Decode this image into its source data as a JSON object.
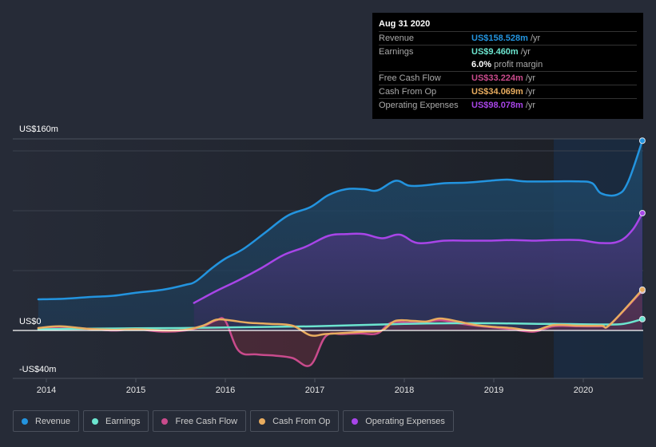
{
  "tooltip": {
    "date": "Aug 31 2020",
    "rows": [
      {
        "label": "Revenue",
        "value": "US$158.528m",
        "unit": "/yr",
        "color": "#2394df"
      },
      {
        "label": "Earnings",
        "value": "US$9.460m",
        "unit": "/yr",
        "color": "#6ce5cf"
      },
      {
        "label": "",
        "value": "6.0%",
        "unit": "profit margin",
        "color": "#ffffff"
      },
      {
        "label": "Free Cash Flow",
        "value": "US$33.224m",
        "unit": "/yr",
        "color": "#c94b8c"
      },
      {
        "label": "Cash From Op",
        "value": "US$34.069m",
        "unit": "/yr",
        "color": "#e8ac5f"
      },
      {
        "label": "Operating Expenses",
        "value": "US$98.078m",
        "unit": "/yr",
        "color": "#a845e8"
      }
    ]
  },
  "legend": [
    {
      "label": "Revenue",
      "color": "#2394df"
    },
    {
      "label": "Earnings",
      "color": "#6ce5cf"
    },
    {
      "label": "Free Cash Flow",
      "color": "#c94b8c"
    },
    {
      "label": "Cash From Op",
      "color": "#e8ac5f"
    },
    {
      "label": "Operating Expenses",
      "color": "#a845e8"
    }
  ],
  "chart_data": {
    "type": "area",
    "title": "",
    "xlabel": "",
    "ylabel": "",
    "ylim": [
      -40,
      160
    ],
    "xlim": [
      2013.83,
      2020.67
    ],
    "y_tick_labels": [
      {
        "value": 160,
        "label": "US$160m"
      },
      {
        "value": 0,
        "label": "US$0"
      },
      {
        "value": -40,
        "label": "-US$40m"
      }
    ],
    "gridlines": [
      150,
      100,
      50
    ],
    "x_tick_labels": [
      "2014",
      "2015",
      "2016",
      "2017",
      "2018",
      "2019",
      "2020"
    ],
    "x_ticks": [
      2014,
      2015,
      2016,
      2017,
      2018,
      2019,
      2020
    ],
    "highlight_from": 2020.75,
    "forecast_region_start": 2019.67,
    "series": [
      {
        "name": "Revenue",
        "color": "#2394df",
        "fill": true,
        "points": [
          [
            2013.91,
            26
          ],
          [
            2014.2,
            26.5
          ],
          [
            2014.5,
            28
          ],
          [
            2014.75,
            29
          ],
          [
            2015.0,
            31.5
          ],
          [
            2015.3,
            34
          ],
          [
            2015.55,
            38
          ],
          [
            2015.67,
            41
          ],
          [
            2015.85,
            52
          ],
          [
            2016.0,
            60
          ],
          [
            2016.2,
            68
          ],
          [
            2016.45,
            82
          ],
          [
            2016.7,
            96
          ],
          [
            2016.95,
            103
          ],
          [
            2017.15,
            113
          ],
          [
            2017.35,
            118
          ],
          [
            2017.55,
            118
          ],
          [
            2017.7,
            117
          ],
          [
            2017.9,
            125
          ],
          [
            2018.05,
            121
          ],
          [
            2018.2,
            121
          ],
          [
            2018.45,
            123
          ],
          [
            2018.7,
            123.5
          ],
          [
            2018.95,
            125
          ],
          [
            2019.15,
            126
          ],
          [
            2019.35,
            124.5
          ],
          [
            2019.67,
            124.5
          ],
          [
            2019.95,
            124.5
          ],
          [
            2020.1,
            123
          ],
          [
            2020.2,
            114.5
          ],
          [
            2020.38,
            113.5
          ],
          [
            2020.5,
            124
          ],
          [
            2020.66,
            158.5
          ]
        ]
      },
      {
        "name": "Operating Expenses",
        "color": "#a845e8",
        "fill": true,
        "points": [
          [
            2015.65,
            23
          ],
          [
            2015.9,
            33
          ],
          [
            2016.15,
            42
          ],
          [
            2016.4,
            52
          ],
          [
            2016.65,
            63
          ],
          [
            2016.9,
            70
          ],
          [
            2017.15,
            79
          ],
          [
            2017.35,
            80.5
          ],
          [
            2017.55,
            80.5
          ],
          [
            2017.75,
            77
          ],
          [
            2017.95,
            80
          ],
          [
            2018.15,
            73
          ],
          [
            2018.45,
            75
          ],
          [
            2018.7,
            75
          ],
          [
            2018.95,
            75
          ],
          [
            2019.2,
            75.5
          ],
          [
            2019.45,
            75
          ],
          [
            2019.67,
            75.5
          ],
          [
            2019.95,
            75.5
          ],
          [
            2020.2,
            73
          ],
          [
            2020.4,
            74.5
          ],
          [
            2020.55,
            84
          ],
          [
            2020.66,
            98
          ]
        ]
      },
      {
        "name": "Earnings",
        "color": "#6ce5cf",
        "fill": false,
        "points": [
          [
            2013.91,
            1
          ],
          [
            2014.5,
            1.5
          ],
          [
            2015.0,
            1.8
          ],
          [
            2015.5,
            2
          ],
          [
            2016.0,
            2.5
          ],
          [
            2016.5,
            3
          ],
          [
            2017.0,
            3.5
          ],
          [
            2017.5,
            4.5
          ],
          [
            2018.0,
            5.5
          ],
          [
            2018.5,
            6
          ],
          [
            2019.0,
            6
          ],
          [
            2019.5,
            5.5
          ],
          [
            2019.67,
            5.5
          ],
          [
            2020.2,
            5
          ],
          [
            2020.45,
            5.5
          ],
          [
            2020.66,
            9.5
          ]
        ]
      },
      {
        "name": "Free Cash Flow",
        "color": "#c94b8c",
        "fill": true,
        "points": [
          [
            2013.91,
            2
          ],
          [
            2014.15,
            3
          ],
          [
            2014.45,
            1.5
          ],
          [
            2014.75,
            0
          ],
          [
            2015.0,
            1
          ],
          [
            2015.3,
            -1
          ],
          [
            2015.55,
            0
          ],
          [
            2015.75,
            3.5
          ],
          [
            2015.9,
            8.5
          ],
          [
            2016.0,
            8
          ],
          [
            2016.15,
            -17
          ],
          [
            2016.35,
            -20
          ],
          [
            2016.55,
            -21
          ],
          [
            2016.75,
            -23
          ],
          [
            2016.95,
            -29
          ],
          [
            2017.12,
            -5
          ],
          [
            2017.3,
            -3
          ],
          [
            2017.5,
            -2.5
          ],
          [
            2017.7,
            -2.5
          ],
          [
            2017.85,
            6.5
          ],
          [
            2018.05,
            6.5
          ],
          [
            2018.2,
            6.5
          ],
          [
            2018.4,
            8.5
          ],
          [
            2018.6,
            6
          ],
          [
            2018.8,
            4
          ],
          [
            2019.0,
            2.5
          ],
          [
            2019.2,
            1
          ],
          [
            2019.45,
            -1
          ],
          [
            2019.67,
            3.5
          ],
          [
            2019.95,
            3.5
          ],
          [
            2020.2,
            3.5
          ],
          [
            2020.3,
            5
          ],
          [
            2020.66,
            33.2
          ]
        ]
      },
      {
        "name": "Cash From Op",
        "color": "#e8ac5f",
        "fill": false,
        "points": [
          [
            2013.91,
            2
          ],
          [
            2014.15,
            3.5
          ],
          [
            2014.45,
            1.5
          ],
          [
            2014.75,
            0.5
          ],
          [
            2015.0,
            1
          ],
          [
            2015.3,
            0
          ],
          [
            2015.55,
            0.5
          ],
          [
            2015.75,
            4
          ],
          [
            2015.9,
            9
          ],
          [
            2016.05,
            8.5
          ],
          [
            2016.25,
            6.5
          ],
          [
            2016.5,
            5.5
          ],
          [
            2016.75,
            4
          ],
          [
            2016.95,
            -4
          ],
          [
            2017.12,
            -3
          ],
          [
            2017.35,
            -2
          ],
          [
            2017.55,
            -1
          ],
          [
            2017.75,
            0
          ],
          [
            2017.9,
            8
          ],
          [
            2018.1,
            8
          ],
          [
            2018.25,
            7.5
          ],
          [
            2018.4,
            10
          ],
          [
            2018.6,
            7.5
          ],
          [
            2018.8,
            4.5
          ],
          [
            2019.0,
            3
          ],
          [
            2019.2,
            2
          ],
          [
            2019.45,
            0
          ],
          [
            2019.67,
            4.5
          ],
          [
            2019.95,
            4
          ],
          [
            2020.2,
            4
          ],
          [
            2020.3,
            5
          ],
          [
            2020.66,
            34.1
          ]
        ]
      }
    ]
  }
}
